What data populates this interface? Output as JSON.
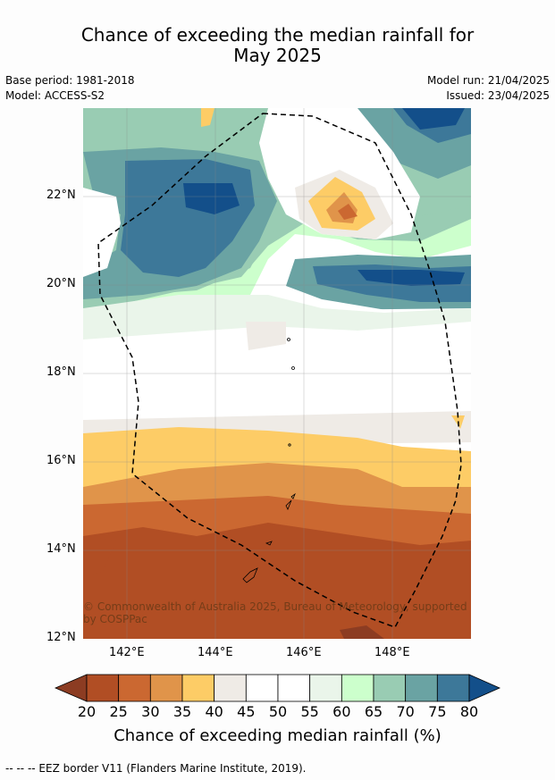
{
  "title_line1": "Chance of exceeding the median rainfall for",
  "title_line2": "May 2025",
  "base_period": "Base period: 1981-2018",
  "model": "Model: ACCESS-S2",
  "model_run": "Model run: 21/04/2025",
  "issued": "Issued: 23/04/2025",
  "lat_labels": [
    "22°N",
    "20°N",
    "18°N",
    "16°N",
    "14°N",
    "12°N"
  ],
  "lon_labels": [
    "142°E",
    "144°E",
    "146°E",
    "148°E"
  ],
  "copyright": "© Commonwealth of Australia 2025, Bureau of Meteorology, supported by COSPPac",
  "colorbar": {
    "title": "Chance of exceeding median rainfall (%)",
    "ticks": [
      "20",
      "25",
      "30",
      "35",
      "40",
      "45",
      "50",
      "55",
      "60",
      "65",
      "70",
      "75",
      "80"
    ],
    "colors": [
      "#8c3c22",
      "#b14e24",
      "#cb6831",
      "#e0944a",
      "#fdcc66",
      "#efebe6",
      "#ffffff",
      "#ffffff",
      "#eaf5ea",
      "#ccffcc",
      "#99ccb3",
      "#6aa3a3",
      "#3d7899",
      "#134f8a"
    ]
  },
  "footer": "--  --  -- EEZ border V11 (Flanders Marine Institute, 2019)."
}
